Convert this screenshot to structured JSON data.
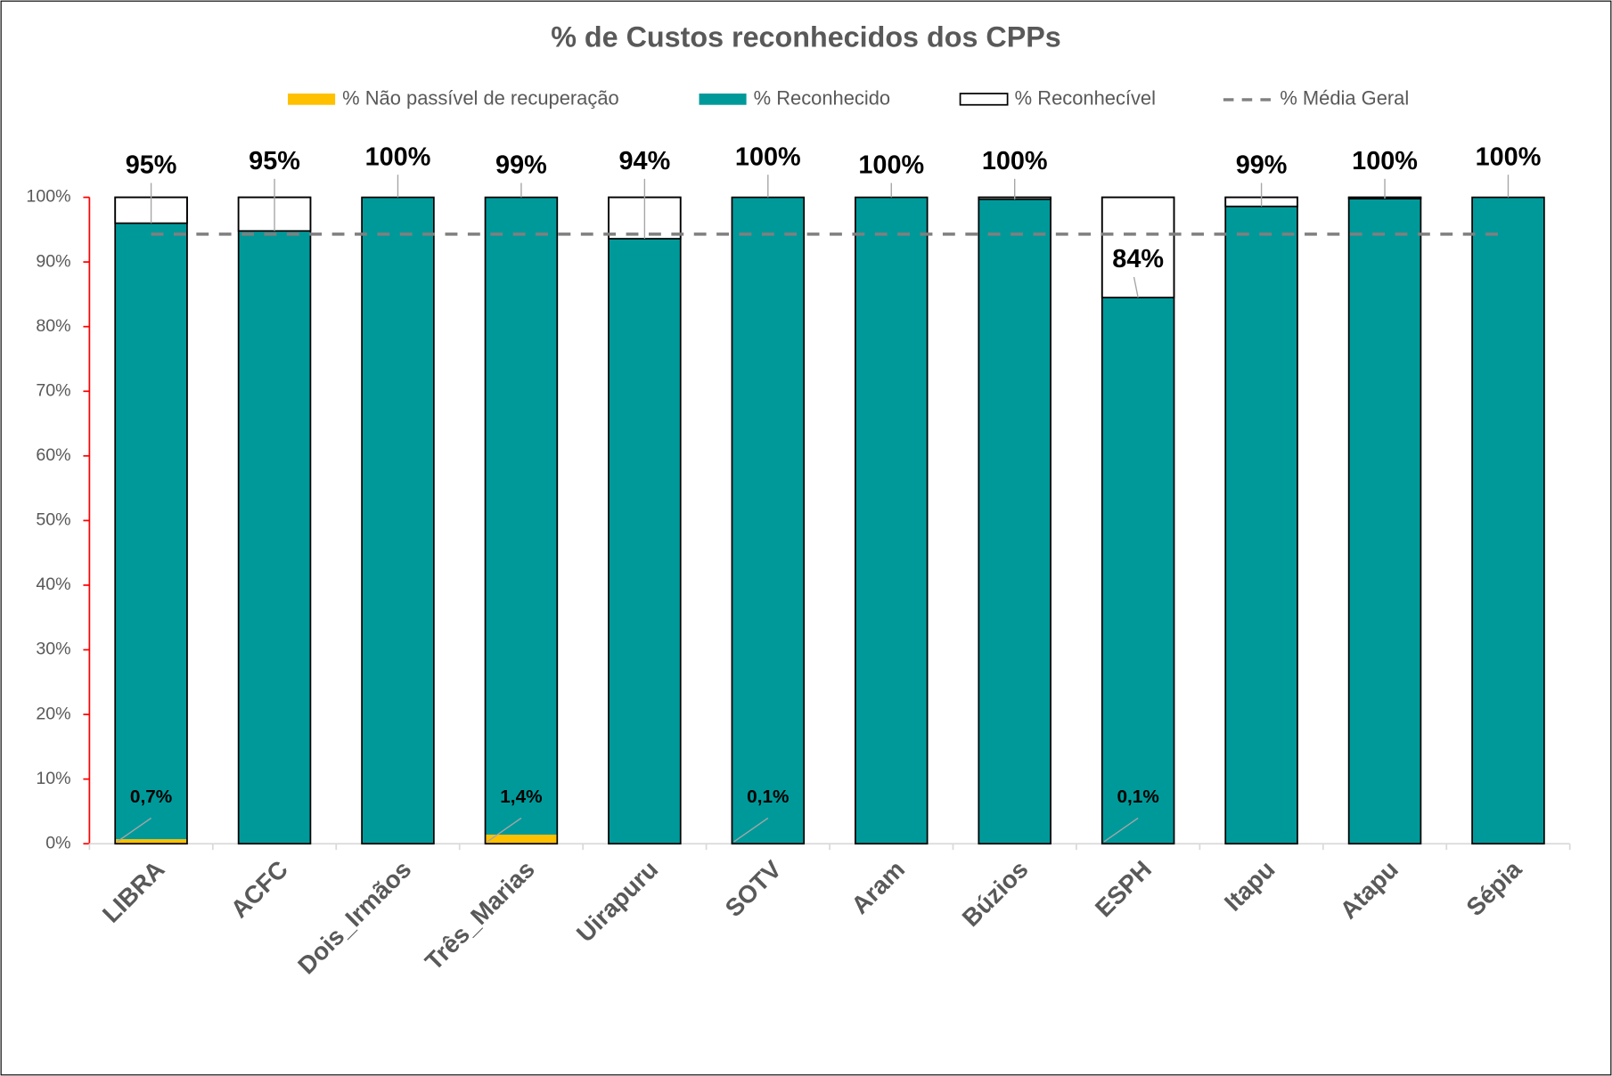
{
  "chart_data": {
    "type": "bar",
    "stacked": true,
    "title": "% de Custos reconhecidos dos CPPs",
    "categories": [
      "LIBRA",
      "ACFC",
      "Dois_Irmãos",
      "Três_Marias",
      "Uirapuru",
      "SOTV",
      "Aram",
      "Búzios",
      "ESPH",
      "Itapu",
      "Atapu",
      "Sépia"
    ],
    "series": [
      {
        "name": "% Não passível de recuperação",
        "color": "#ffc000",
        "values": [
          0.7,
          0,
          0,
          1.4,
          0,
          0.1,
          0,
          0,
          0.1,
          0,
          0,
          0
        ],
        "value_labels": [
          "0,7%",
          null,
          null,
          "1,4%",
          null,
          "0,1%",
          null,
          null,
          "0,1%",
          null,
          null,
          null
        ]
      },
      {
        "name": "% Reconhecido",
        "color": "#00999a",
        "values": [
          95.3,
          94.8,
          100,
          98.6,
          93.6,
          99.9,
          100,
          99.7,
          84.4,
          98.6,
          99.8,
          100
        ],
        "value_labels": [
          "95%",
          "95%",
          "100%",
          "99%",
          "94%",
          "100%",
          "100%",
          "100%",
          "84%",
          "99%",
          "100%",
          "100%"
        ]
      },
      {
        "name": "% Reconhecível",
        "color": "#ffffff",
        "values": [
          4.0,
          5.2,
          0,
          0,
          6.4,
          0,
          0,
          0.3,
          15.5,
          1.4,
          0.2,
          0
        ]
      }
    ],
    "average": {
      "name": "% Média Geral",
      "color": "#7f7f7f",
      "value": 94.3
    },
    "ylim": [
      0,
      100
    ],
    "yticks": [
      {
        "value": 0,
        "label": "0%"
      },
      {
        "value": 10,
        "label": "10%"
      },
      {
        "value": 20,
        "label": "20%"
      },
      {
        "value": 30,
        "label": "30%"
      },
      {
        "value": 40,
        "label": "40%"
      },
      {
        "value": 50,
        "label": "50%"
      },
      {
        "value": 60,
        "label": "60%"
      },
      {
        "value": 70,
        "label": "70%"
      },
      {
        "value": 80,
        "label": "80%"
      },
      {
        "value": 90,
        "label": "90%"
      },
      {
        "value": 100,
        "label": "100%"
      }
    ],
    "legend": "top"
  }
}
